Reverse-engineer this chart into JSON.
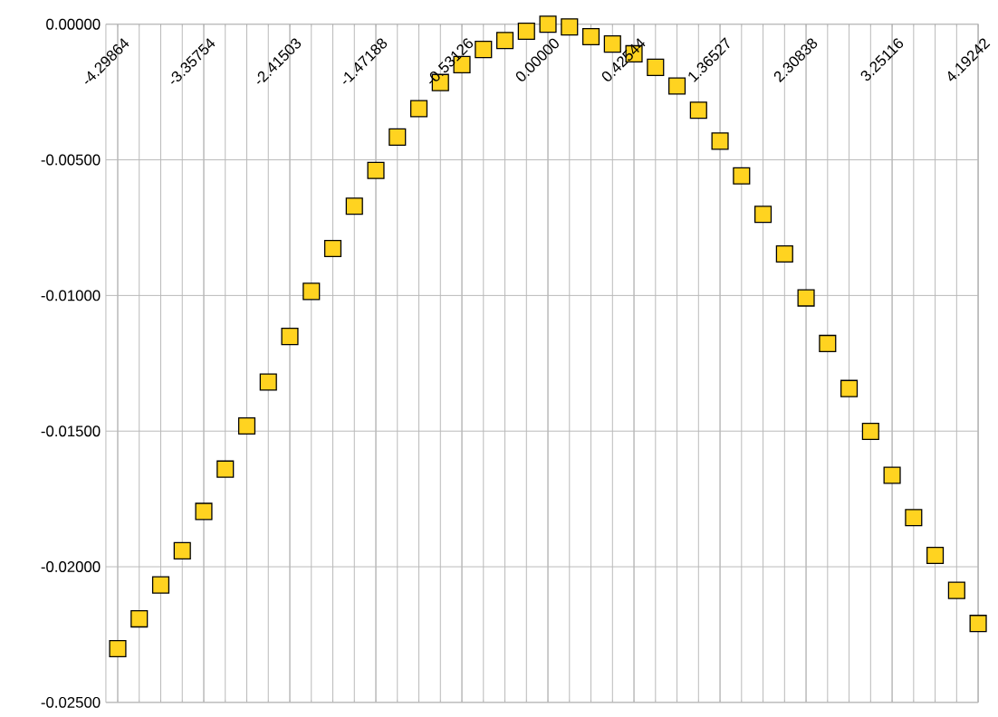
{
  "chart_data": {
    "type": "scatter",
    "categories": [
      "-4.29864",
      null,
      null,
      null,
      "-3.35754",
      null,
      null,
      null,
      "-2.41503",
      null,
      null,
      null,
      "-1.47188",
      null,
      null,
      null,
      "-0.53126",
      null,
      null,
      null,
      "0.00000",
      null,
      null,
      null,
      "0.42544",
      null,
      null,
      null,
      "1.36527",
      null,
      null,
      null,
      "2.30838",
      null,
      null,
      null,
      "3.25116",
      null,
      null,
      null,
      "4.19242"
    ],
    "values": [
      -0.02302,
      -0.02192,
      -0.02067,
      -0.01941,
      -0.01796,
      -0.0164,
      -0.01481,
      -0.01319,
      -0.01151,
      -0.00985,
      -0.00827,
      -0.00671,
      -0.00539,
      -0.00416,
      -0.00311,
      -0.00215,
      -0.00149,
      -0.00093,
      -0.0006,
      -0.00026,
      0.0,
      -0.0001,
      -0.00046,
      -0.00073,
      -0.00109,
      -0.00159,
      -0.00228,
      -0.00317,
      -0.00431,
      -0.00559,
      -0.00701,
      -0.00847,
      -0.01009,
      -0.01177,
      -0.01343,
      -0.01501,
      -0.01663,
      -0.01819,
      -0.01958,
      -0.02087,
      -0.02209
    ],
    "color": "#ffd320",
    "marker": "square",
    "grid": true,
    "ylim": [
      -0.025,
      0
    ],
    "yticks": [
      {
        "value": -0.025,
        "label": "-0.02500"
      },
      {
        "value": -0.02,
        "label": "-0.02000"
      },
      {
        "value": -0.015,
        "label": "-0.01500"
      },
      {
        "value": -0.01,
        "label": "-0.01000"
      },
      {
        "value": -0.005,
        "label": "-0.00500"
      },
      {
        "value": 0,
        "label": "0.00000"
      }
    ]
  }
}
